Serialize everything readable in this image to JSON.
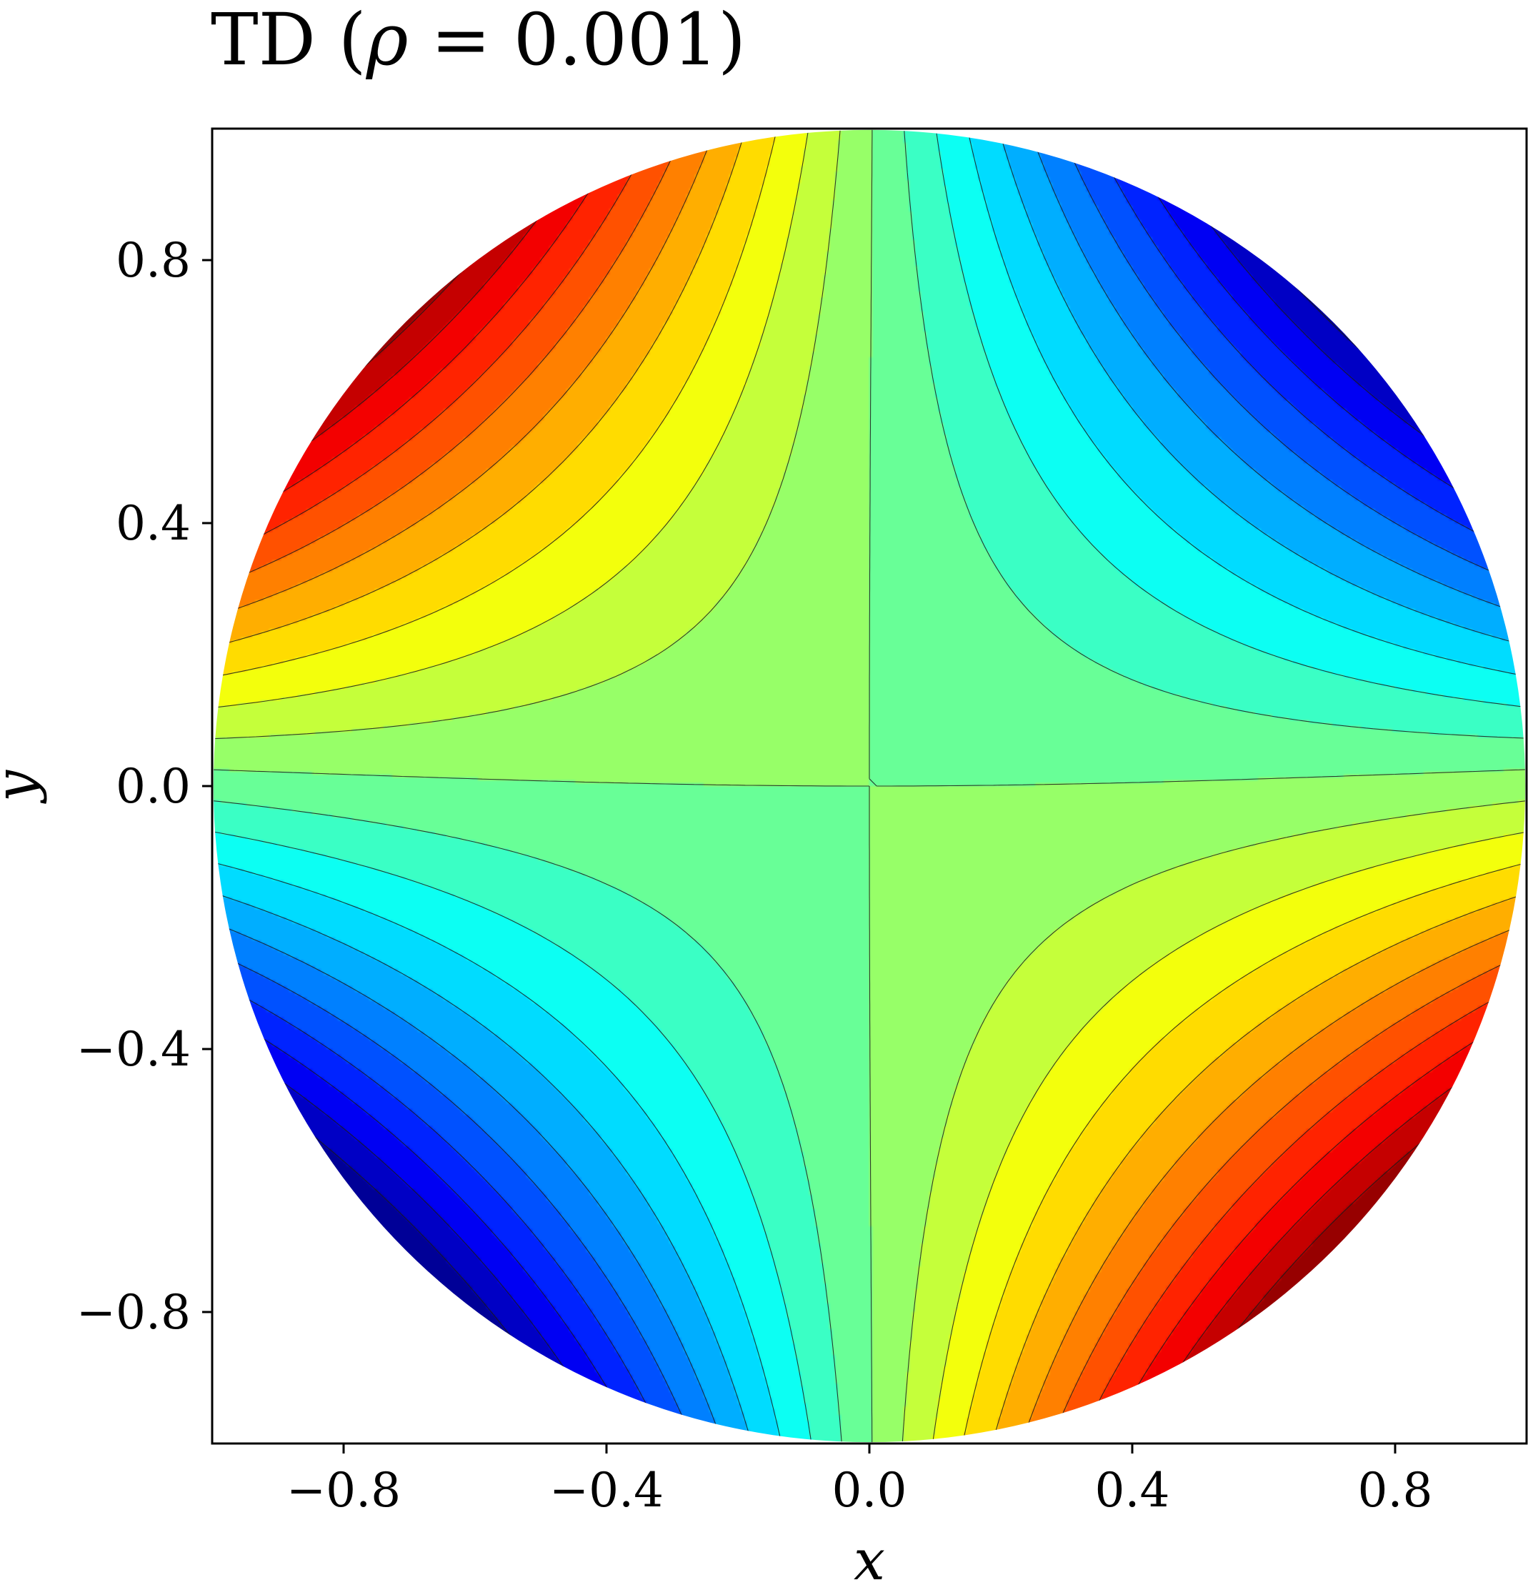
{
  "chart_data": {
    "type": "heatmap",
    "subtype": "filled-contour",
    "title": {
      "prefix": "TD",
      "param_symbol": "ρ",
      "param_value": "0.001"
    },
    "xlabel": "x",
    "ylabel": "y",
    "xlim": [
      -1.0,
      1.0
    ],
    "ylim": [
      -1.0,
      1.0
    ],
    "xticks": [
      -0.8,
      -0.4,
      0.0,
      0.4,
      0.8
    ],
    "yticks": [
      -0.8,
      -0.4,
      0.0,
      0.4,
      0.8
    ],
    "xtick_labels": [
      "−0.8",
      "−0.4",
      "0.0",
      "0.4",
      "0.8"
    ],
    "ytick_labels": [
      "−0.8",
      "−0.4",
      "0.0",
      "0.4",
      "0.8"
    ],
    "domain_shape": "unit disk",
    "colormap": "jet",
    "contour_lines": "black",
    "field": {
      "maxima": [
        {
          "x": -0.72,
          "y": 0.66,
          "color": "#ff8800"
        },
        {
          "x": 0.52,
          "y": -0.82,
          "color": "#ff5a00"
        }
      ],
      "minima": [
        {
          "x": 0.66,
          "y": 0.71,
          "color": "#00b8ff"
        },
        {
          "x": -0.62,
          "y": -0.78,
          "color": "#00e4f0"
        }
      ],
      "saddle": {
        "x": 0.0,
        "y": 0.0
      }
    }
  }
}
